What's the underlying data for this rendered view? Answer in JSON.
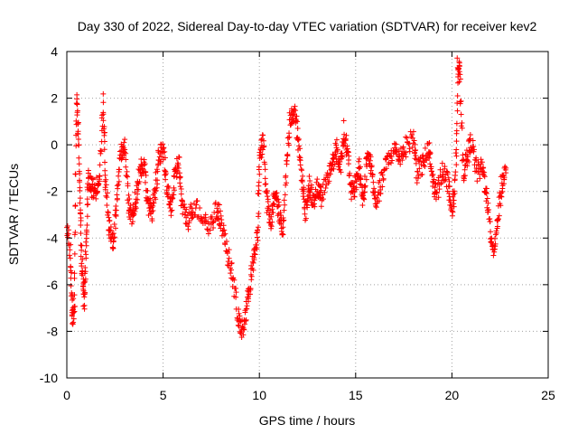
{
  "chart_data": {
    "type": "scatter",
    "title": "Day 330 of 2022, Sidereal Day-to-day VTEC variation (SDTVAR) for receiver kev2",
    "xlabel": "GPS time / hours",
    "ylabel": "SDTVAR / TECUs",
    "xlim": [
      0,
      25
    ],
    "ylim": [
      -10,
      4
    ],
    "xticks": [
      "0",
      "5",
      "10",
      "15",
      "20",
      "25"
    ],
    "yticks": [
      "-10",
      "-8",
      "-6",
      "-4",
      "-2",
      "0",
      "2",
      "4"
    ],
    "grid": true,
    "marker": "+",
    "color": "#ff0000",
    "series": [
      {
        "name": "SDTVAR",
        "trace": [
          [
            0.0,
            -3.5
          ],
          [
            0.2,
            -4.8
          ],
          [
            0.3,
            -7.6
          ],
          [
            0.4,
            -6.5
          ],
          [
            0.5,
            2.0
          ],
          [
            0.6,
            0.5
          ],
          [
            0.7,
            -3.0
          ],
          [
            0.8,
            -5.5
          ],
          [
            0.9,
            -6.8
          ],
          [
            1.0,
            -4.5
          ],
          [
            1.1,
            -1.5
          ],
          [
            1.3,
            -1.8
          ],
          [
            1.5,
            -2.0
          ],
          [
            1.7,
            -1.2
          ],
          [
            1.9,
            1.8
          ],
          [
            2.0,
            -1.5
          ],
          [
            2.2,
            -3.5
          ],
          [
            2.4,
            -4.2
          ],
          [
            2.6,
            -2.5
          ],
          [
            2.8,
            -0.5
          ],
          [
            3.0,
            0.0
          ],
          [
            3.2,
            -2.5
          ],
          [
            3.4,
            -3.2
          ],
          [
            3.6,
            -2.2
          ],
          [
            3.8,
            -1.0
          ],
          [
            4.0,
            -0.8
          ],
          [
            4.2,
            -2.4
          ],
          [
            4.4,
            -3.0
          ],
          [
            4.6,
            -1.8
          ],
          [
            4.8,
            -0.5
          ],
          [
            5.0,
            -0.2
          ],
          [
            5.2,
            -1.8
          ],
          [
            5.4,
            -2.8
          ],
          [
            5.6,
            -1.5
          ],
          [
            5.8,
            -0.6
          ],
          [
            6.0,
            -2.8
          ],
          [
            6.3,
            -3.2
          ],
          [
            6.6,
            -2.6
          ],
          [
            7.0,
            -3.0
          ],
          [
            7.4,
            -3.5
          ],
          [
            7.8,
            -2.8
          ],
          [
            8.0,
            -3.2
          ],
          [
            8.3,
            -4.5
          ],
          [
            8.6,
            -5.5
          ],
          [
            8.9,
            -7.5
          ],
          [
            9.1,
            -8.0
          ],
          [
            9.3,
            -7.2
          ],
          [
            9.5,
            -6.0
          ],
          [
            9.7,
            -5.0
          ],
          [
            9.9,
            -4.0
          ],
          [
            10.0,
            -0.5
          ],
          [
            10.2,
            0.2
          ],
          [
            10.4,
            -2.5
          ],
          [
            10.6,
            -3.5
          ],
          [
            10.8,
            -2.0
          ],
          [
            11.0,
            -2.8
          ],
          [
            11.2,
            -3.8
          ],
          [
            11.4,
            -1.0
          ],
          [
            11.6,
            1.2
          ],
          [
            11.8,
            1.5
          ],
          [
            12.0,
            0.5
          ],
          [
            12.2,
            -1.5
          ],
          [
            12.4,
            -2.8
          ],
          [
            12.6,
            -1.8
          ],
          [
            12.8,
            -2.4
          ],
          [
            13.0,
            -1.8
          ],
          [
            13.2,
            -2.2
          ],
          [
            13.5,
            -1.5
          ],
          [
            13.8,
            -0.8
          ],
          [
            14.0,
            -0.2
          ],
          [
            14.2,
            -1.0
          ],
          [
            14.4,
            0.6
          ],
          [
            14.6,
            -0.5
          ],
          [
            14.8,
            -2.2
          ],
          [
            15.0,
            -1.6
          ],
          [
            15.2,
            -1.0
          ],
          [
            15.4,
            -2.5
          ],
          [
            15.6,
            -0.5
          ],
          [
            15.8,
            -0.8
          ],
          [
            16.0,
            -2.5
          ],
          [
            16.3,
            -1.8
          ],
          [
            16.6,
            -0.8
          ],
          [
            17.0,
            -0.2
          ],
          [
            17.3,
            -0.5
          ],
          [
            17.6,
            -0.1
          ],
          [
            18.0,
            0.3
          ],
          [
            18.2,
            -1.2
          ],
          [
            18.5,
            -0.8
          ],
          [
            18.8,
            -0.2
          ],
          [
            19.0,
            -1.5
          ],
          [
            19.2,
            -2.3
          ],
          [
            19.5,
            -1.0
          ],
          [
            19.8,
            -1.6
          ],
          [
            20.0,
            -2.8
          ],
          [
            20.2,
            -1.5
          ],
          [
            20.3,
            3.5
          ],
          [
            20.4,
            3.0
          ],
          [
            20.6,
            -1.2
          ],
          [
            20.8,
            -0.5
          ],
          [
            21.0,
            0.2
          ],
          [
            21.3,
            -1.2
          ],
          [
            21.6,
            -1.0
          ],
          [
            21.8,
            -2.2
          ],
          [
            22.0,
            -3.8
          ],
          [
            22.2,
            -4.5
          ],
          [
            22.4,
            -3.0
          ],
          [
            22.6,
            -1.6
          ],
          [
            22.8,
            -1.2
          ]
        ]
      }
    ]
  }
}
